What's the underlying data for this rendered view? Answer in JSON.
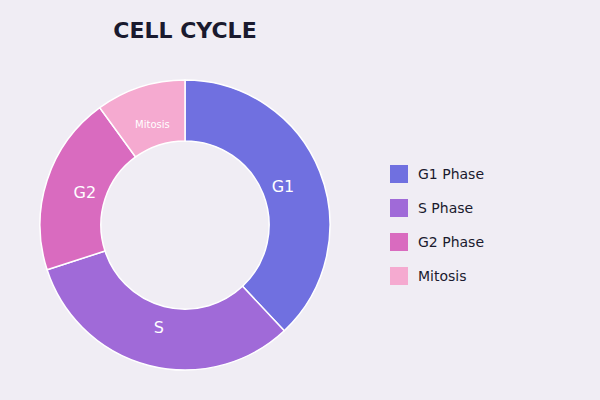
{
  "chart_data": {
    "type": "donut",
    "title": "CELL CYCLE",
    "labels": [
      "G1",
      "S",
      "G2",
      "Mitosis"
    ],
    "categories": [
      "G1 Phase",
      "S Phase",
      "G2 Phase",
      "Mitosis"
    ],
    "values": [
      38,
      32,
      20,
      10
    ],
    "colors": [
      "#7070e0",
      "#a06ad8",
      "#d96bbf",
      "#f5aad0"
    ],
    "legend": "right"
  }
}
